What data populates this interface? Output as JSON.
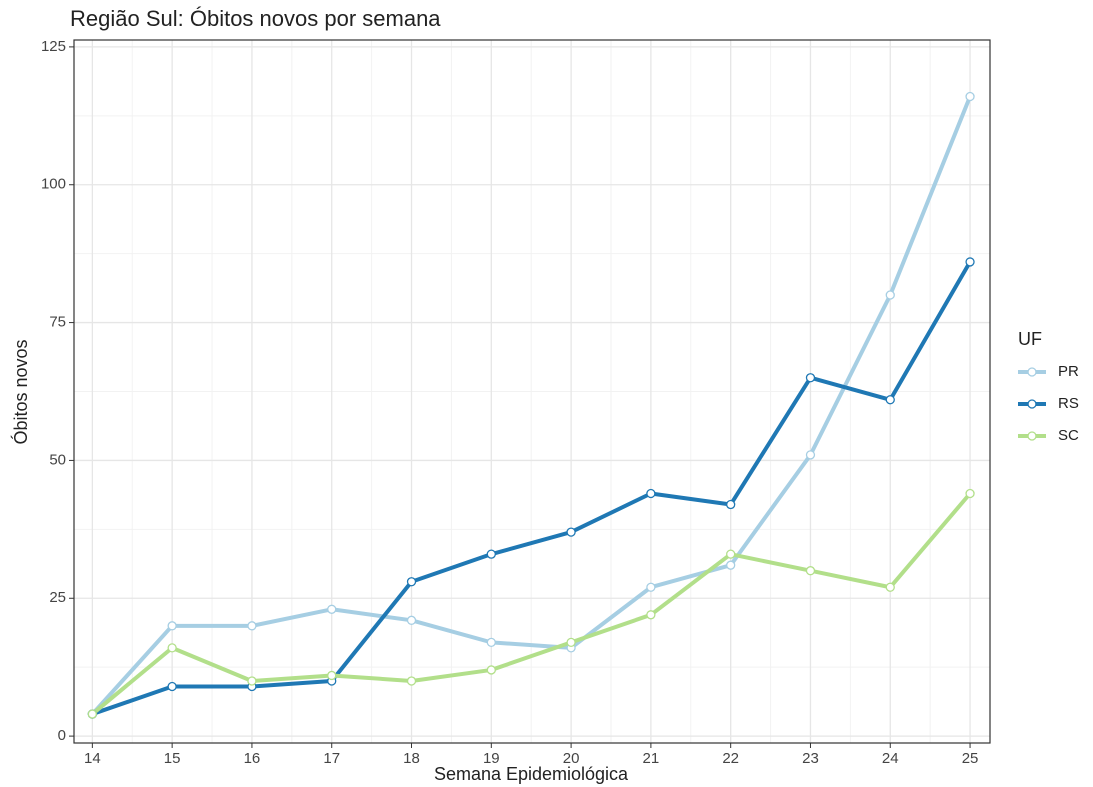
{
  "chart_data": {
    "type": "line",
    "title": "Região Sul: Óbitos novos por semana",
    "x_label": "Semana Epidemiológica",
    "y_label": "Óbitos novos",
    "legend_title": "UF",
    "legend_position": "right",
    "x": [
      14,
      15,
      16,
      17,
      18,
      19,
      20,
      21,
      22,
      23,
      24,
      25
    ],
    "series": [
      {
        "name": "PR",
        "color": "#a6cee3",
        "values": [
          4,
          20,
          20,
          23,
          21,
          17,
          16,
          27,
          31,
          51,
          80,
          116
        ]
      },
      {
        "name": "RS",
        "color": "#1f78b4",
        "values": [
          4,
          9,
          9,
          10,
          28,
          33,
          37,
          44,
          42,
          65,
          61,
          86
        ]
      },
      {
        "name": "SC",
        "color": "#b2df8a",
        "values": [
          4,
          16,
          10,
          11,
          10,
          12,
          17,
          22,
          33,
          30,
          27,
          44
        ]
      }
    ],
    "xlim": [
      13.77,
      25.25
    ],
    "xticks": [
      14,
      15,
      16,
      17,
      18,
      19,
      20,
      21,
      22,
      23,
      24,
      25
    ],
    "ylim": [
      -1.25,
      126.25
    ],
    "yticks": [
      0,
      25,
      50,
      75,
      100,
      125
    ],
    "grid": true
  }
}
